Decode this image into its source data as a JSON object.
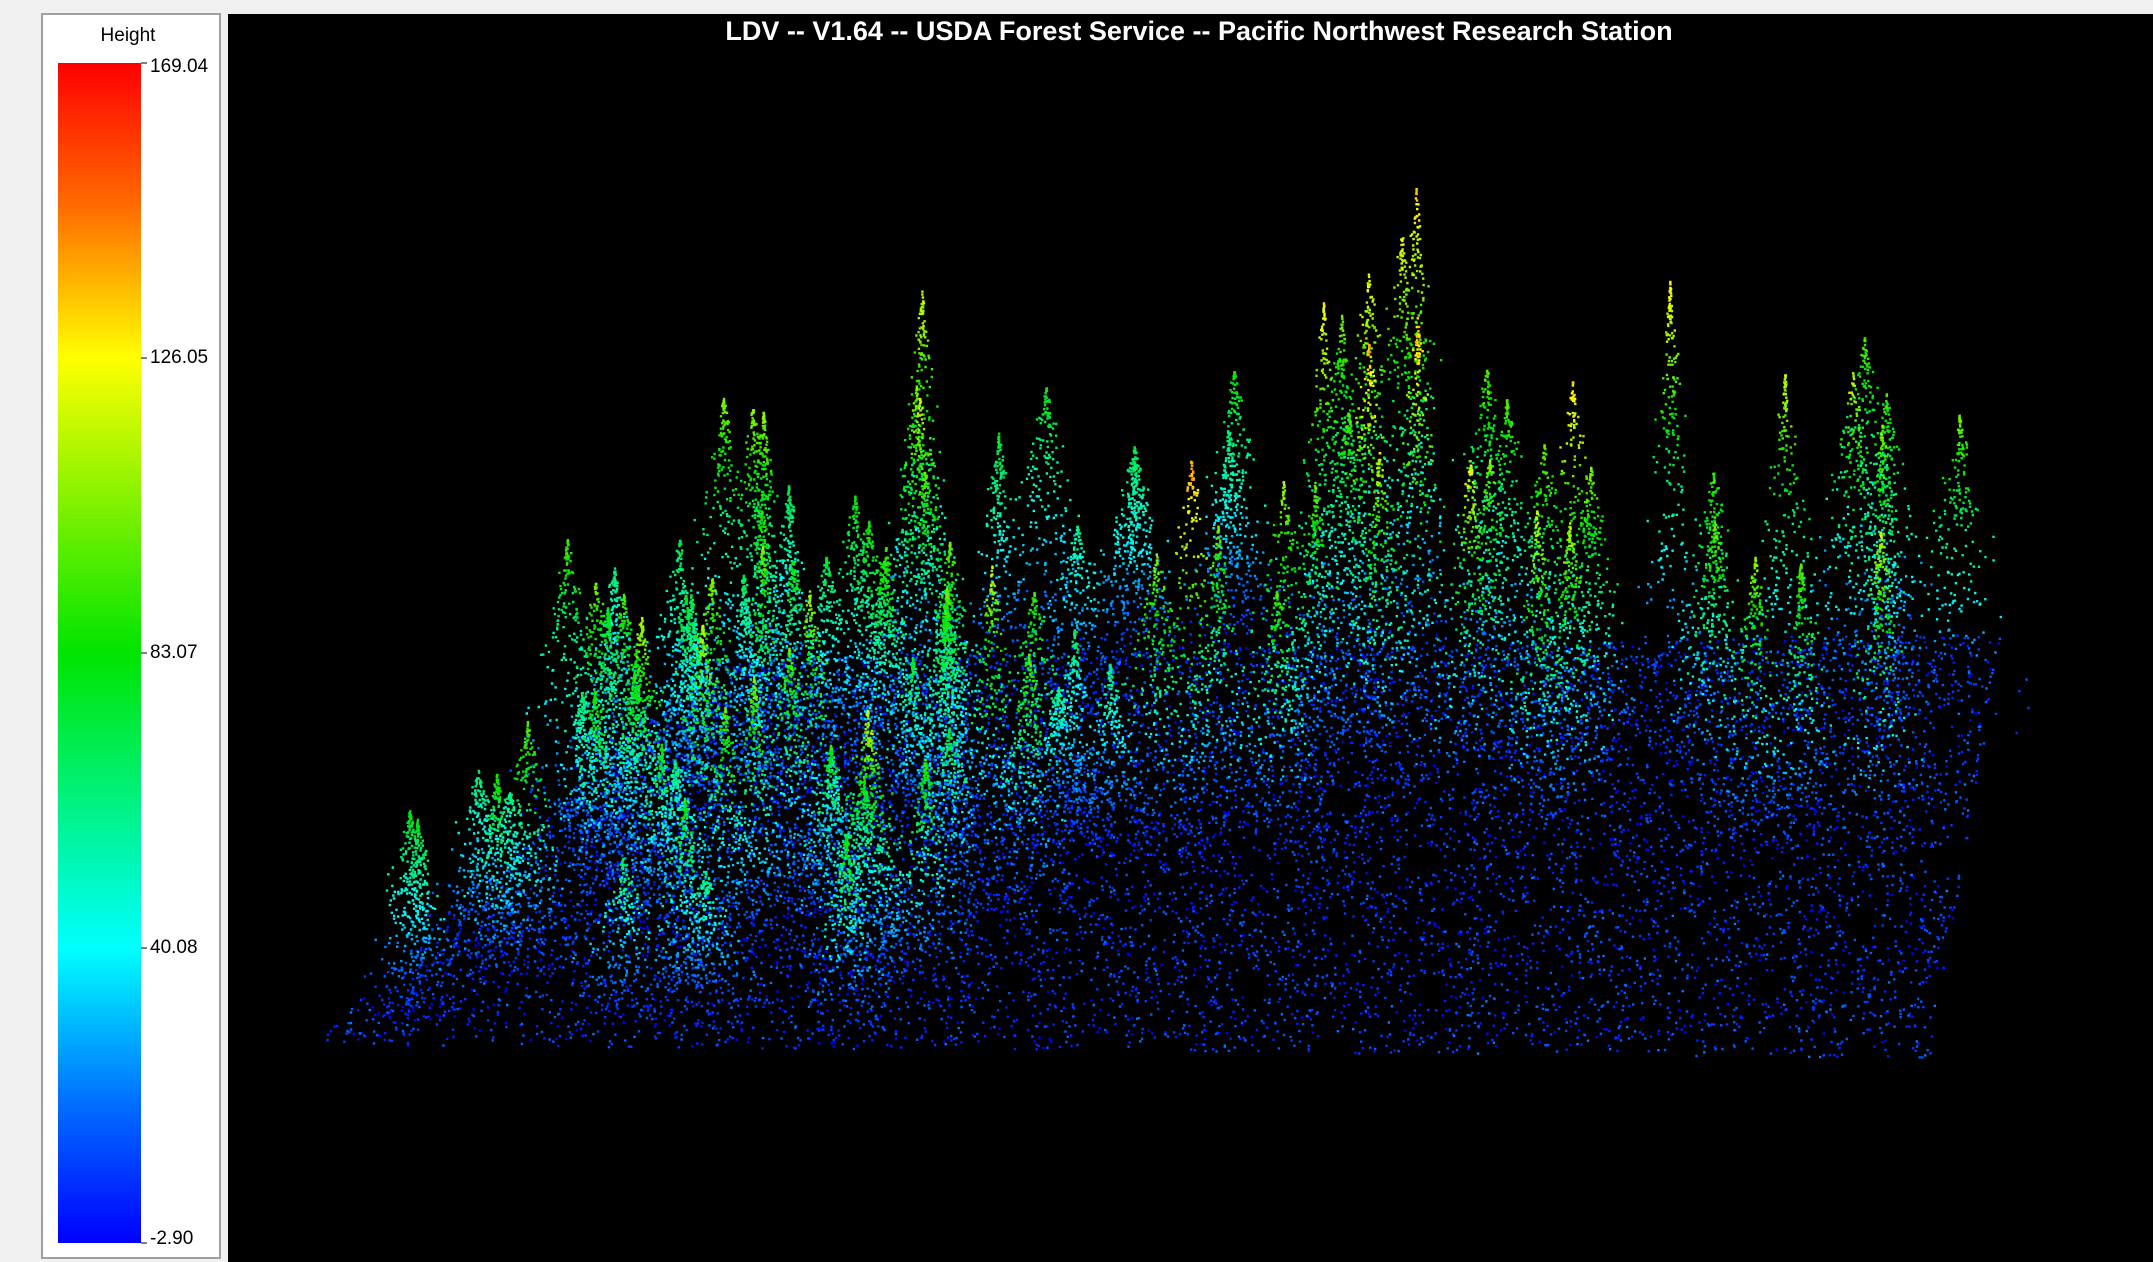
{
  "window": {
    "title": "LDV -- V1.64 -- USDA Forest Service -- Pacific Northwest Research Station"
  },
  "legend": {
    "title": "Height",
    "ticks": [
      169.04,
      126.05,
      83.07,
      40.08,
      {
        "value": -2.9,
        "label": "-2.90"
      }
    ]
  }
}
